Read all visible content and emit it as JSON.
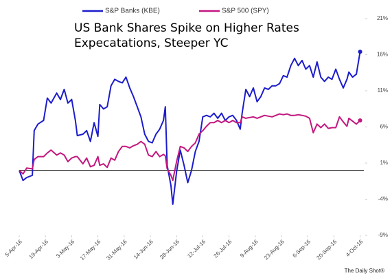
{
  "chart_data": {
    "type": "line",
    "title": [
      "US Bank Shares Spike on Higher Rates",
      "Expecatations, Steeper YC"
    ],
    "source": "The Daily Shot®",
    "x": [
      "2016-04-05",
      "2016-04-07",
      "2016-04-09",
      "2016-04-12",
      "2016-04-13",
      "2016-04-15",
      "2016-04-18",
      "2016-04-20",
      "2016-04-22",
      "2016-04-25",
      "2016-04-27",
      "2016-04-29",
      "2016-05-01",
      "2016-05-03",
      "2016-05-05",
      "2016-05-06",
      "2016-05-09",
      "2016-05-11",
      "2016-05-13",
      "2016-05-15",
      "2016-05-17",
      "2016-05-18",
      "2016-05-20",
      "2016-05-22",
      "2016-05-24",
      "2016-05-26",
      "2016-05-28",
      "2016-05-30",
      "2016-06-01",
      "2016-06-03",
      "2016-06-05",
      "2016-06-07",
      "2016-06-09",
      "2016-06-11",
      "2016-06-13",
      "2016-06-15",
      "2016-06-17",
      "2016-06-19",
      "2016-06-21",
      "2016-06-22",
      "2016-06-23",
      "2016-06-25",
      "2016-06-26",
      "2016-06-28",
      "2016-06-30",
      "2016-07-02",
      "2016-07-04",
      "2016-07-06",
      "2016-07-08",
      "2016-07-10",
      "2016-07-12",
      "2016-07-14",
      "2016-07-16",
      "2016-07-18",
      "2016-07-20",
      "2016-07-22",
      "2016-07-24",
      "2016-07-26",
      "2016-07-28",
      "2016-07-30",
      "2016-08-01",
      "2016-08-02",
      "2016-08-04",
      "2016-08-06",
      "2016-08-08",
      "2016-08-10",
      "2016-08-12",
      "2016-08-14",
      "2016-08-16",
      "2016-08-18",
      "2016-08-20",
      "2016-08-22",
      "2016-08-24",
      "2016-08-26",
      "2016-08-28",
      "2016-08-30",
      "2016-09-01",
      "2016-09-03",
      "2016-09-05",
      "2016-09-07",
      "2016-09-09",
      "2016-09-11",
      "2016-09-13",
      "2016-09-15",
      "2016-09-17",
      "2016-09-19",
      "2016-09-21",
      "2016-09-23",
      "2016-09-25",
      "2016-09-27",
      "2016-09-28",
      "2016-09-30",
      "2016-10-02",
      "2016-10-04"
    ],
    "series": [
      {
        "name": "S&P Banks (KBE)",
        "color": "#1c1ccc",
        "values": [
          0,
          -1.4,
          -1.0,
          -0.7,
          5.5,
          6.4,
          6.9,
          10.0,
          9.3,
          10.7,
          9.8,
          11.2,
          9.3,
          9.8,
          6.9,
          4.8,
          5.0,
          5.5,
          4.0,
          6.6,
          4.7,
          9.1,
          8.5,
          8.8,
          11.7,
          12.6,
          12.3,
          12.1,
          12.9,
          11.4,
          10.2,
          8.8,
          7.4,
          5.0,
          4.0,
          3.8,
          5.0,
          5.7,
          6.9,
          8.8,
          0.7,
          -2.1,
          -4.7,
          -0.2,
          2.8,
          0.7,
          -1.7,
          0.0,
          2.6,
          4.0,
          7.4,
          7.6,
          7.4,
          7.9,
          7.2,
          7.9,
          6.9,
          7.4,
          7.6,
          6.9,
          5.7,
          7.9,
          11.2,
          10.2,
          11.4,
          9.5,
          10.2,
          11.4,
          11.2,
          11.7,
          11.7,
          12.0,
          13.1,
          12.9,
          14.5,
          15.5,
          14.5,
          15.2,
          14.0,
          14.5,
          12.9,
          15.0,
          12.9,
          12.3,
          12.9,
          12.6,
          14.0,
          12.6,
          11.4,
          12.6,
          13.6,
          12.9,
          13.3,
          16.4
        ]
      },
      {
        "name": "S&P 500 (SPY)",
        "color": "#c2177f",
        "values": [
          0,
          -0.5,
          0.3,
          0.2,
          1.5,
          1.9,
          1.9,
          2.4,
          2.8,
          2.1,
          2.4,
          2.1,
          1.2,
          1.7,
          1.9,
          1.9,
          0.9,
          1.7,
          0.5,
          0.7,
          1.9,
          0.7,
          0.9,
          0.4,
          1.7,
          1.4,
          2.6,
          3.3,
          3.3,
          3.1,
          3.4,
          3.6,
          4.0,
          3.6,
          2.1,
          1.9,
          2.6,
          1.9,
          2.2,
          2.0,
          0.2,
          -0.7,
          -1.4,
          1.2,
          3.3,
          3.1,
          2.6,
          3.3,
          3.8,
          5.0,
          5.5,
          6.1,
          6.6,
          6.6,
          6.9,
          6.6,
          6.9,
          6.6,
          6.9,
          6.6,
          6.6,
          7.4,
          7.2,
          7.3,
          7.4,
          7.2,
          7.4,
          7.6,
          7.5,
          7.4,
          7.6,
          7.8,
          7.7,
          7.8,
          7.6,
          7.6,
          7.7,
          7.6,
          7.5,
          7.2,
          5.2,
          6.4,
          5.9,
          6.4,
          5.8,
          5.9,
          5.9,
          7.4,
          6.7,
          6.1,
          7.2,
          6.8,
          6.4,
          6.9
        ]
      }
    ],
    "xlim": [
      "2016-04-05",
      "2016-10-06"
    ],
    "xticks": [
      {
        "value": "2016-04-05",
        "label": "5-Apr-16"
      },
      {
        "value": "2016-04-19",
        "label": "19-Apr-16"
      },
      {
        "value": "2016-05-03",
        "label": "3-May-16"
      },
      {
        "value": "2016-05-17",
        "label": "17-May-16"
      },
      {
        "value": "2016-05-31",
        "label": "31-May-16"
      },
      {
        "value": "2016-06-14",
        "label": "14-Jun-16"
      },
      {
        "value": "2016-06-28",
        "label": "28-Jun-16"
      },
      {
        "value": "2016-07-12",
        "label": "12-Jul-16"
      },
      {
        "value": "2016-07-26",
        "label": "26-Jul-16"
      },
      {
        "value": "2016-08-09",
        "label": "9-Aug-16"
      },
      {
        "value": "2016-08-23",
        "label": "23-Aug-16"
      },
      {
        "value": "2016-09-06",
        "label": "6-Sep-16"
      },
      {
        "value": "2016-09-20",
        "label": "20-Sep-16"
      },
      {
        "value": "2016-10-04",
        "label": "4-Oct-16"
      }
    ],
    "ylim": [
      -9,
      21
    ],
    "yticks": [
      {
        "value": -9,
        "label": "-9%"
      },
      {
        "value": -4,
        "label": "-4%"
      },
      {
        "value": 1,
        "label": "1%"
      },
      {
        "value": 6,
        "label": "6%"
      },
      {
        "value": 11,
        "label": "11%"
      },
      {
        "value": 16,
        "label": "16%"
      },
      {
        "value": 21,
        "label": "21%"
      }
    ],
    "y_axis_side": "right",
    "zero_line": true,
    "grid": false,
    "end_marker": true,
    "legend": "top"
  }
}
